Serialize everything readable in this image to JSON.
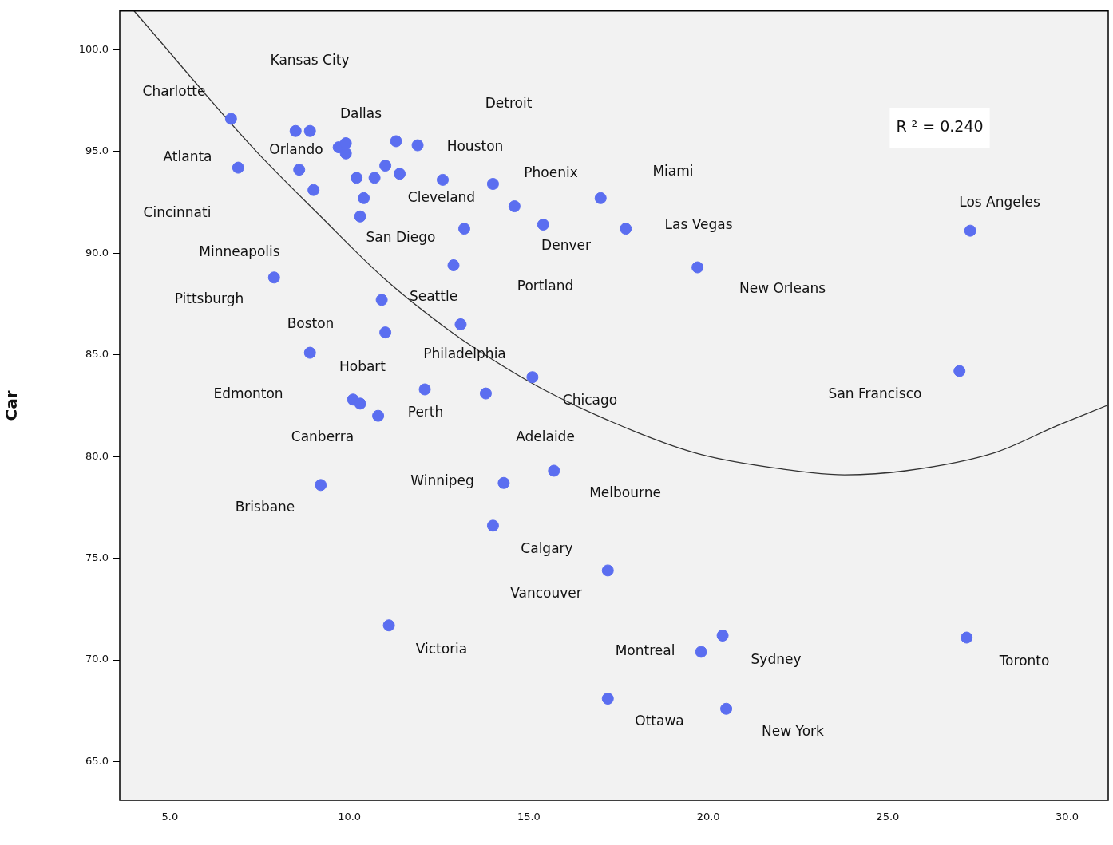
{
  "chart_data": {
    "type": "scatter",
    "ylabel": "Car",
    "xlim": [
      3.6,
      31.1
    ],
    "ylim": [
      63.1,
      101.9
    ],
    "xticks": [
      {
        "value": 5,
        "label": "5.0"
      },
      {
        "value": 10,
        "label": "10.0"
      },
      {
        "value": 15,
        "label": "15.0"
      },
      {
        "value": 20,
        "label": "20.0"
      },
      {
        "value": 25,
        "label": "25.0"
      },
      {
        "value": 30,
        "label": "30.0"
      }
    ],
    "yticks": [
      {
        "value": 65,
        "label": "65.0"
      },
      {
        "value": 70,
        "label": "70.0"
      },
      {
        "value": 75,
        "label": "75.0"
      },
      {
        "value": 80,
        "label": "80.0"
      },
      {
        "value": 85,
        "label": "85.0"
      },
      {
        "value": 90,
        "label": "90.0"
      },
      {
        "value": 95,
        "label": "95.0"
      },
      {
        "value": 100,
        "label": "100.0"
      }
    ],
    "grid": false,
    "legend": false,
    "marker": "circle",
    "series": [
      {
        "type": "scatter",
        "color": "#5b6ef0",
        "x": [
          6.7,
          8.5,
          8.9,
          9.7,
          9.9,
          9.9,
          6.9,
          8.6,
          9.0,
          10.2,
          10.7,
          11.0,
          11.4,
          11.3,
          11.9,
          10.4,
          10.3,
          12.6,
          14.0,
          14.6,
          13.2,
          12.9,
          15.4,
          17.0,
          17.7,
          19.7,
          27.3,
          27.0,
          7.9,
          10.9,
          11.0,
          13.1,
          8.9,
          15.1,
          12.1,
          13.8,
          10.1,
          10.3,
          10.8,
          9.2,
          14.3,
          15.7,
          14.0,
          17.2,
          11.1,
          20.4,
          19.8,
          17.2,
          20.5,
          27.2
        ],
        "values": [
          96.6,
          96.0,
          96.0,
          95.2,
          95.4,
          94.9,
          94.2,
          94.1,
          93.1,
          93.7,
          93.7,
          94.3,
          93.9,
          95.5,
          95.3,
          92.7,
          91.8,
          93.6,
          93.4,
          92.3,
          91.2,
          89.4,
          91.4,
          92.7,
          91.2,
          89.3,
          91.1,
          84.2,
          88.8,
          87.7,
          86.1,
          86.5,
          85.1,
          83.9,
          83.3,
          83.1,
          82.8,
          82.6,
          82.0,
          78.6,
          78.7,
          79.3,
          76.6,
          74.4,
          71.7,
          71.2,
          70.4,
          68.1,
          67.6,
          71.1
        ]
      },
      {
        "type": "line",
        "color": "#333333",
        "marker": "none",
        "x": [
          4.0,
          7.3,
          9.2,
          11.0,
          12.7,
          13.6,
          15.4,
          18.0,
          19.8,
          22.0,
          23.8,
          25.5,
          28.0,
          29.7,
          31.1
        ],
        "values": [
          101.9,
          95.2,
          91.8,
          88.7,
          86.3,
          85.2,
          83.3,
          81.2,
          80.1,
          79.4,
          79.1,
          79.3,
          80.2,
          81.5,
          82.5
        ]
      }
    ],
    "annotations": [
      "R ² = 0.240",
      "Kansas City",
      "Charlotte",
      "Dallas",
      "Detroit",
      "Houston",
      "Atlanta",
      "Orlando",
      "Phoenix",
      "Miami",
      "Cleveland",
      "Cincinnati",
      "Los Angeles",
      "San Diego",
      "Las Vegas",
      "Minneapolis",
      "Denver",
      "Pittsburgh",
      "Portland",
      "New Orleans",
      "Seattle",
      "Boston",
      "Philadelphia",
      "Hobart",
      "Edmonton",
      "San Francisco",
      "Chicago",
      "Perth",
      "Canberra",
      "Adelaide",
      "Winnipeg",
      "Melbourne",
      "Brisbane",
      "Calgary",
      "Vancouver",
      "Victoria",
      "Montreal",
      "Sydney",
      "Toronto",
      "Ottawa",
      "New York"
    ]
  }
}
